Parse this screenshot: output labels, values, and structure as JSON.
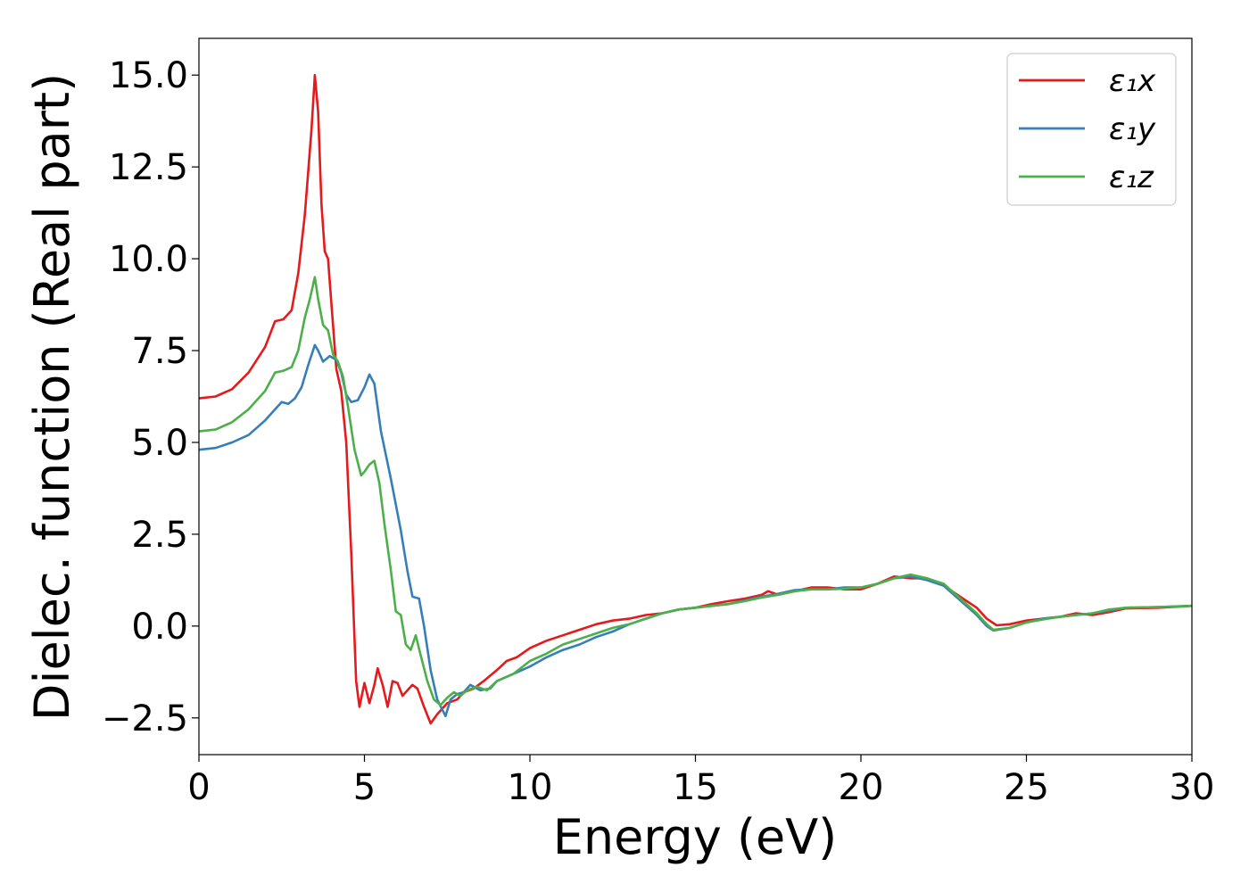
{
  "chart_data": {
    "type": "line",
    "xlabel": "Energy (eV)",
    "ylabel": "Dielec. function (Real part)",
    "xlim": [
      0,
      30
    ],
    "ylim": [
      -3.5,
      16
    ],
    "xticks": [
      0,
      5,
      10,
      15,
      20,
      25,
      30
    ],
    "xtick_labels": [
      "0",
      "5",
      "10",
      "15",
      "20",
      "25",
      "30"
    ],
    "yticks": [
      -2.5,
      0.0,
      2.5,
      5.0,
      7.5,
      10.0,
      12.5,
      15.0
    ],
    "ytick_labels": [
      "−2.5",
      "0.0",
      "2.5",
      "5.0",
      "7.5",
      "10.0",
      "12.5",
      "15.0"
    ],
    "grid": false,
    "legend_position": "top-right",
    "series": [
      {
        "name": "ε₁x",
        "color": "#e41a1c",
        "points": [
          [
            0,
            6.2
          ],
          [
            0.5,
            6.25
          ],
          [
            1.0,
            6.45
          ],
          [
            1.5,
            6.9
          ],
          [
            2.0,
            7.6
          ],
          [
            2.3,
            8.3
          ],
          [
            2.55,
            8.35
          ],
          [
            2.8,
            8.6
          ],
          [
            3.0,
            9.6
          ],
          [
            3.2,
            11.2
          ],
          [
            3.4,
            13.5
          ],
          [
            3.5,
            15.0
          ],
          [
            3.6,
            14.0
          ],
          [
            3.7,
            11.5
          ],
          [
            3.8,
            10.2
          ],
          [
            3.9,
            10.0
          ],
          [
            4.0,
            8.8
          ],
          [
            4.15,
            7.0
          ],
          [
            4.3,
            6.4
          ],
          [
            4.45,
            5.0
          ],
          [
            4.6,
            2.0
          ],
          [
            4.75,
            -1.5
          ],
          [
            4.85,
            -2.2
          ],
          [
            5.0,
            -1.55
          ],
          [
            5.15,
            -2.1
          ],
          [
            5.3,
            -1.6
          ],
          [
            5.4,
            -1.15
          ],
          [
            5.55,
            -1.6
          ],
          [
            5.7,
            -2.2
          ],
          [
            5.85,
            -1.5
          ],
          [
            6.0,
            -1.55
          ],
          [
            6.15,
            -1.9
          ],
          [
            6.3,
            -1.75
          ],
          [
            6.45,
            -1.6
          ],
          [
            6.6,
            -1.7
          ],
          [
            6.8,
            -2.2
          ],
          [
            7.0,
            -2.65
          ],
          [
            7.2,
            -2.4
          ],
          [
            7.5,
            -2.1
          ],
          [
            7.8,
            -2.0
          ],
          [
            8.0,
            -1.8
          ],
          [
            8.3,
            -1.7
          ],
          [
            8.6,
            -1.5
          ],
          [
            9.0,
            -1.2
          ],
          [
            9.3,
            -0.95
          ],
          [
            9.6,
            -0.85
          ],
          [
            10.0,
            -0.6
          ],
          [
            10.5,
            -0.4
          ],
          [
            11.0,
            -0.25
          ],
          [
            11.5,
            -0.1
          ],
          [
            12.0,
            0.05
          ],
          [
            12.5,
            0.15
          ],
          [
            13.0,
            0.2
          ],
          [
            13.5,
            0.3
          ],
          [
            14.0,
            0.35
          ],
          [
            14.5,
            0.45
          ],
          [
            15.0,
            0.5
          ],
          [
            15.5,
            0.6
          ],
          [
            16.0,
            0.68
          ],
          [
            16.5,
            0.75
          ],
          [
            17.0,
            0.85
          ],
          [
            17.2,
            0.95
          ],
          [
            17.5,
            0.85
          ],
          [
            18.0,
            0.95
          ],
          [
            18.5,
            1.05
          ],
          [
            19.0,
            1.05
          ],
          [
            19.5,
            1.0
          ],
          [
            20.0,
            1.0
          ],
          [
            20.5,
            1.15
          ],
          [
            21.0,
            1.35
          ],
          [
            21.5,
            1.3
          ],
          [
            22.0,
            1.3
          ],
          [
            22.5,
            1.1
          ],
          [
            23.0,
            0.8
          ],
          [
            23.5,
            0.5
          ],
          [
            23.8,
            0.2
          ],
          [
            24.1,
            0.02
          ],
          [
            24.5,
            0.05
          ],
          [
            25.0,
            0.15
          ],
          [
            25.5,
            0.2
          ],
          [
            26.0,
            0.25
          ],
          [
            26.5,
            0.35
          ],
          [
            27.0,
            0.3
          ],
          [
            27.5,
            0.38
          ],
          [
            28.0,
            0.48
          ],
          [
            29.0,
            0.5
          ],
          [
            30.0,
            0.55
          ]
        ]
      },
      {
        "name": "ε₁y",
        "color": "#377eb8",
        "points": [
          [
            0,
            4.8
          ],
          [
            0.5,
            4.85
          ],
          [
            1.0,
            5.0
          ],
          [
            1.5,
            5.2
          ],
          [
            2.0,
            5.6
          ],
          [
            2.3,
            5.9
          ],
          [
            2.5,
            6.1
          ],
          [
            2.7,
            6.05
          ],
          [
            2.9,
            6.2
          ],
          [
            3.1,
            6.5
          ],
          [
            3.3,
            7.1
          ],
          [
            3.5,
            7.65
          ],
          [
            3.6,
            7.5
          ],
          [
            3.75,
            7.2
          ],
          [
            3.95,
            7.35
          ],
          [
            4.15,
            7.25
          ],
          [
            4.3,
            6.9
          ],
          [
            4.45,
            6.3
          ],
          [
            4.6,
            6.1
          ],
          [
            4.8,
            6.15
          ],
          [
            5.0,
            6.5
          ],
          [
            5.15,
            6.85
          ],
          [
            5.3,
            6.6
          ],
          [
            5.5,
            5.3
          ],
          [
            5.8,
            4.0
          ],
          [
            6.1,
            2.6
          ],
          [
            6.3,
            1.5
          ],
          [
            6.45,
            0.8
          ],
          [
            6.65,
            0.75
          ],
          [
            6.8,
            0.0
          ],
          [
            7.0,
            -1.2
          ],
          [
            7.2,
            -2.0
          ],
          [
            7.45,
            -2.45
          ],
          [
            7.6,
            -2.0
          ],
          [
            7.8,
            -1.85
          ],
          [
            8.0,
            -1.8
          ],
          [
            8.2,
            -1.6
          ],
          [
            8.5,
            -1.75
          ],
          [
            8.8,
            -1.7
          ],
          [
            9.0,
            -1.5
          ],
          [
            9.5,
            -1.3
          ],
          [
            10.0,
            -1.1
          ],
          [
            10.5,
            -0.85
          ],
          [
            11.0,
            -0.65
          ],
          [
            11.5,
            -0.5
          ],
          [
            12.0,
            -0.3
          ],
          [
            12.5,
            -0.15
          ],
          [
            13.0,
            0.05
          ],
          [
            13.5,
            0.2
          ],
          [
            14.0,
            0.35
          ],
          [
            14.5,
            0.45
          ],
          [
            15.0,
            0.5
          ],
          [
            15.5,
            0.55
          ],
          [
            16.0,
            0.6
          ],
          [
            16.5,
            0.7
          ],
          [
            17.0,
            0.8
          ],
          [
            17.5,
            0.88
          ],
          [
            18.0,
            0.98
          ],
          [
            18.5,
            1.0
          ],
          [
            19.0,
            1.0
          ],
          [
            19.5,
            1.05
          ],
          [
            20.0,
            1.05
          ],
          [
            20.5,
            1.15
          ],
          [
            21.0,
            1.3
          ],
          [
            21.5,
            1.35
          ],
          [
            22.0,
            1.25
          ],
          [
            22.5,
            1.1
          ],
          [
            23.0,
            0.7
          ],
          [
            23.5,
            0.3
          ],
          [
            23.8,
            0.0
          ],
          [
            24.0,
            -0.12
          ],
          [
            24.5,
            -0.05
          ],
          [
            25.0,
            0.1
          ],
          [
            25.5,
            0.2
          ],
          [
            26.0,
            0.25
          ],
          [
            26.5,
            0.3
          ],
          [
            27.0,
            0.35
          ],
          [
            27.5,
            0.42
          ],
          [
            28.0,
            0.5
          ],
          [
            29.0,
            0.52
          ],
          [
            30.0,
            0.55
          ]
        ]
      },
      {
        "name": "ε₁z",
        "color": "#4daf4a",
        "points": [
          [
            0,
            5.3
          ],
          [
            0.5,
            5.35
          ],
          [
            1.0,
            5.55
          ],
          [
            1.5,
            5.9
          ],
          [
            2.0,
            6.4
          ],
          [
            2.3,
            6.9
          ],
          [
            2.55,
            6.95
          ],
          [
            2.8,
            7.05
          ],
          [
            3.0,
            7.5
          ],
          [
            3.2,
            8.4
          ],
          [
            3.35,
            8.9
          ],
          [
            3.5,
            9.5
          ],
          [
            3.6,
            8.9
          ],
          [
            3.75,
            8.2
          ],
          [
            3.9,
            8.05
          ],
          [
            4.05,
            7.4
          ],
          [
            4.2,
            7.2
          ],
          [
            4.35,
            6.8
          ],
          [
            4.5,
            6.0
          ],
          [
            4.7,
            4.8
          ],
          [
            4.9,
            4.1
          ],
          [
            5.0,
            4.2
          ],
          [
            5.15,
            4.4
          ],
          [
            5.3,
            4.5
          ],
          [
            5.45,
            3.9
          ],
          [
            5.6,
            2.8
          ],
          [
            5.8,
            1.5
          ],
          [
            5.95,
            0.4
          ],
          [
            6.1,
            0.3
          ],
          [
            6.25,
            -0.5
          ],
          [
            6.4,
            -0.65
          ],
          [
            6.55,
            -0.25
          ],
          [
            6.7,
            -0.8
          ],
          [
            6.9,
            -1.5
          ],
          [
            7.1,
            -2.0
          ],
          [
            7.3,
            -2.15
          ],
          [
            7.5,
            -1.95
          ],
          [
            7.7,
            -1.8
          ],
          [
            7.9,
            -1.9
          ],
          [
            8.1,
            -1.75
          ],
          [
            8.4,
            -1.65
          ],
          [
            8.7,
            -1.75
          ],
          [
            9.0,
            -1.5
          ],
          [
            9.5,
            -1.3
          ],
          [
            10.0,
            -0.95
          ],
          [
            10.5,
            -0.75
          ],
          [
            11.0,
            -0.5
          ],
          [
            11.5,
            -0.35
          ],
          [
            12.0,
            -0.2
          ],
          [
            12.5,
            -0.05
          ],
          [
            13.0,
            0.05
          ],
          [
            13.5,
            0.2
          ],
          [
            14.0,
            0.35
          ],
          [
            14.5,
            0.45
          ],
          [
            15.0,
            0.5
          ],
          [
            15.5,
            0.55
          ],
          [
            16.0,
            0.6
          ],
          [
            16.5,
            0.68
          ],
          [
            17.0,
            0.78
          ],
          [
            17.5,
            0.85
          ],
          [
            18.0,
            0.95
          ],
          [
            18.5,
            1.0
          ],
          [
            19.0,
            1.0
          ],
          [
            19.5,
            1.02
          ],
          [
            20.0,
            1.05
          ],
          [
            20.5,
            1.15
          ],
          [
            21.0,
            1.3
          ],
          [
            21.5,
            1.4
          ],
          [
            22.0,
            1.3
          ],
          [
            22.5,
            1.15
          ],
          [
            23.0,
            0.75
          ],
          [
            23.5,
            0.35
          ],
          [
            23.8,
            0.05
          ],
          [
            24.0,
            -0.1
          ],
          [
            24.5,
            -0.05
          ],
          [
            25.0,
            0.1
          ],
          [
            25.5,
            0.18
          ],
          [
            26.0,
            0.25
          ],
          [
            26.5,
            0.3
          ],
          [
            27.0,
            0.35
          ],
          [
            27.5,
            0.45
          ],
          [
            28.0,
            0.5
          ],
          [
            29.0,
            0.52
          ],
          [
            30.0,
            0.55
          ]
        ]
      }
    ]
  }
}
